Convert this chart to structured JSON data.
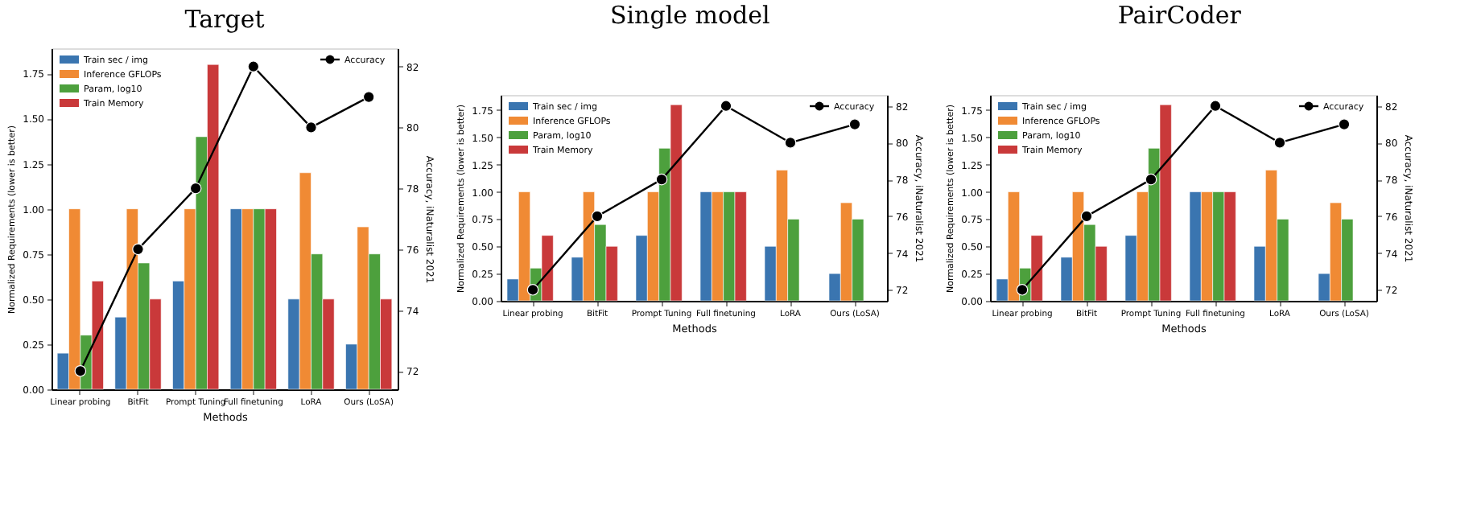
{
  "chart_data": [
    {
      "type": "bar",
      "title": "Target",
      "xlabel": "Methods",
      "ylabel": "Normalized Requirements (lower is better)",
      "y2label": "Accuracy, iNaturalist 2021",
      "categories": [
        "Linear probing",
        "BitFit",
        "Prompt Tuning",
        "Full finetuning",
        "LoRA",
        "Ours (LoSA)"
      ],
      "series": [
        {
          "name": "Train sec / img",
          "color": "#3a75b0",
          "values": [
            0.2,
            0.4,
            0.6,
            1.0,
            0.5,
            0.25
          ]
        },
        {
          "name": "Inference GFLOPs",
          "color": "#f08a34",
          "values": [
            1.0,
            1.0,
            1.0,
            1.0,
            1.2,
            0.9
          ]
        },
        {
          "name": "Param, log10",
          "color": "#4da03d",
          "values": [
            0.3,
            0.7,
            1.4,
            1.0,
            0.75,
            0.75
          ]
        },
        {
          "name": "Train Memory",
          "color": "#c9393a",
          "values": [
            0.6,
            0.5,
            1.8,
            1.0,
            0.5,
            0.5
          ]
        },
        {
          "name": "Accuracy",
          "type": "line",
          "axis": "y2",
          "color": "#000000",
          "values": [
            72,
            76,
            78,
            82,
            80,
            81
          ]
        }
      ],
      "ylim": [
        0,
        1.89
      ],
      "yticks": [
        {
          "value": 0,
          "label": "0.00"
        },
        {
          "value": 0.25,
          "label": "0.25"
        },
        {
          "value": 0.5,
          "label": "0.50"
        },
        {
          "value": 0.75,
          "label": "0.75"
        },
        {
          "value": 1,
          "label": "1.00"
        },
        {
          "value": 1.25,
          "label": "1.25"
        },
        {
          "value": 1.5,
          "label": "1.50"
        },
        {
          "value": 1.75,
          "label": "1.75"
        }
      ],
      "y2lim": [
        71.4,
        82.6
      ],
      "y2ticks": [
        72,
        74,
        76,
        78,
        80,
        82
      ],
      "legend": "top left",
      "marker": "circle",
      "line_style": "solid"
    },
    {
      "type": "bar",
      "title": "Single model",
      "xlabel": "Methods",
      "ylabel": "Normalized Requirements (lower is better)",
      "y2label": "Accuracy, iNaturalist 2021",
      "categories": [
        "Linear probing",
        "BitFit",
        "Prompt Tuning",
        "Full finetuning",
        "LoRA",
        "Ours (LoSA)"
      ],
      "series": [
        {
          "name": "Train sec / img",
          "color": "#3a75b0",
          "values": [
            0.2,
            0.4,
            0.6,
            1.0,
            0.5,
            0.25
          ]
        },
        {
          "name": "Inference GFLOPs",
          "color": "#f08a34",
          "values": [
            1.0,
            1.0,
            1.0,
            1.0,
            1.2,
            0.9
          ]
        },
        {
          "name": "Param, log10",
          "color": "#4da03d",
          "values": [
            0.3,
            0.7,
            1.4,
            1.0,
            0.75,
            0.75
          ]
        },
        {
          "name": "Train Memory",
          "color": "#c9393a",
          "values": [
            0.6,
            0.5,
            1.8,
            1.0,
            null,
            null
          ]
        },
        {
          "name": "Accuracy",
          "type": "line",
          "axis": "y2",
          "color": "#000000",
          "values": [
            72,
            76,
            78,
            82,
            80,
            81
          ]
        }
      ],
      "ylim": [
        0,
        1.89
      ],
      "yticks": [
        {
          "value": 0,
          "label": "0.00"
        },
        {
          "value": 0.25,
          "label": "0.25"
        },
        {
          "value": 0.5,
          "label": "0.50"
        },
        {
          "value": 0.75,
          "label": "0.75"
        },
        {
          "value": 1,
          "label": "1.00"
        },
        {
          "value": 1.25,
          "label": "1.25"
        },
        {
          "value": 1.5,
          "label": "1.50"
        },
        {
          "value": 1.75,
          "label": "1.75"
        }
      ],
      "y2lim": [
        71.4,
        82.6
      ],
      "y2ticks": [
        72,
        74,
        76,
        78,
        80,
        82
      ],
      "legend": "top left",
      "marker": "circle",
      "line_style": "solid"
    },
    {
      "type": "bar",
      "title": "PairCoder",
      "xlabel": "Methods",
      "ylabel": "Normalized Requirements (lower is better)",
      "y2label": "Accuracy, iNaturalist 2021",
      "categories": [
        "Linear probing",
        "BitFit",
        "Prompt Tuning",
        "Full finetuning",
        "LoRA",
        "Ours (LoSA)"
      ],
      "series": [
        {
          "name": "Train sec / img",
          "color": "#3a75b0",
          "values": [
            0.2,
            0.4,
            0.6,
            1.0,
            0.5,
            0.25
          ]
        },
        {
          "name": "Inference GFLOPs",
          "color": "#f08a34",
          "values": [
            1.0,
            1.0,
            1.0,
            1.0,
            1.2,
            0.9
          ]
        },
        {
          "name": "Param, log10",
          "color": "#4da03d",
          "values": [
            0.3,
            0.7,
            1.4,
            1.0,
            0.75,
            0.75
          ]
        },
        {
          "name": "Train Memory",
          "color": "#c9393a",
          "values": [
            0.6,
            0.5,
            1.8,
            1.0,
            null,
            null
          ]
        },
        {
          "name": "Accuracy",
          "type": "line",
          "axis": "y2",
          "color": "#000000",
          "values": [
            72,
            76,
            78,
            82,
            80,
            81
          ]
        }
      ],
      "ylim": [
        0,
        1.89
      ],
      "yticks": [
        {
          "value": 0,
          "label": "0.00"
        },
        {
          "value": 0.25,
          "label": "0.25"
        },
        {
          "value": 0.5,
          "label": "0.50"
        },
        {
          "value": 0.75,
          "label": "0.75"
        },
        {
          "value": 1,
          "label": "1.00"
        },
        {
          "value": 1.25,
          "label": "1.25"
        },
        {
          "value": 1.5,
          "label": "1.50"
        },
        {
          "value": 1.75,
          "label": "1.75"
        }
      ],
      "y2lim": [
        71.4,
        82.6
      ],
      "y2ticks": [
        72,
        74,
        76,
        78,
        80,
        82
      ],
      "legend": "top left",
      "marker": "circle",
      "line_style": "solid"
    }
  ]
}
